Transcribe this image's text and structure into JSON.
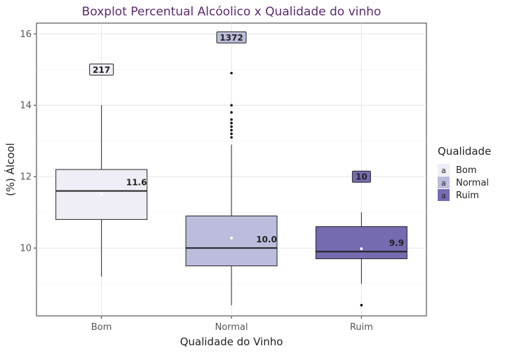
{
  "chart_data": {
    "type": "boxplot",
    "title": "Boxplot Percentual Alcóolico x Qualidade do vinho",
    "xlabel": "Qualidade do Vinho",
    "ylabel": "(%) Álcool",
    "ylim": [
      8.1,
      16.3
    ],
    "yticks": [
      10,
      12,
      14,
      16
    ],
    "grid": true,
    "legend": {
      "title": "Qualidade",
      "placement": "right",
      "key_glyph": "a",
      "entries": [
        "Bom",
        "Normal",
        "Ruim"
      ]
    },
    "categories": [
      "Bom",
      "Normal",
      "Ruim"
    ],
    "series": [
      {
        "category": "Bom",
        "color": "#efedf5",
        "min": 9.2,
        "q1": 10.8,
        "median": 11.6,
        "q3": 12.2,
        "max": 14.0,
        "mean": 11.5,
        "outliers": [],
        "median_label": "11.6",
        "count": 217,
        "count_label": "217",
        "count_y": 15.0
      },
      {
        "category": "Normal",
        "color": "#bcbddc",
        "min": 8.4,
        "q1": 9.5,
        "median": 10.0,
        "q3": 10.9,
        "max": 12.9,
        "mean": 10.28,
        "outliers": [
          13.1,
          13.2,
          13.3,
          13.4,
          13.5,
          13.6,
          13.8,
          14.0,
          14.9
        ],
        "median_label": "10.0",
        "count": 1372,
        "count_label": "1372",
        "count_y": 15.9
      },
      {
        "category": "Ruim",
        "color": "#756bb1",
        "min": 9.0,
        "q1": 9.7,
        "median": 9.9,
        "q3": 10.6,
        "max": 11.0,
        "mean": 9.98,
        "outliers": [
          8.4
        ],
        "median_label": "9.9",
        "count": 10,
        "count_label": "10",
        "count_y": 12.0
      }
    ]
  }
}
